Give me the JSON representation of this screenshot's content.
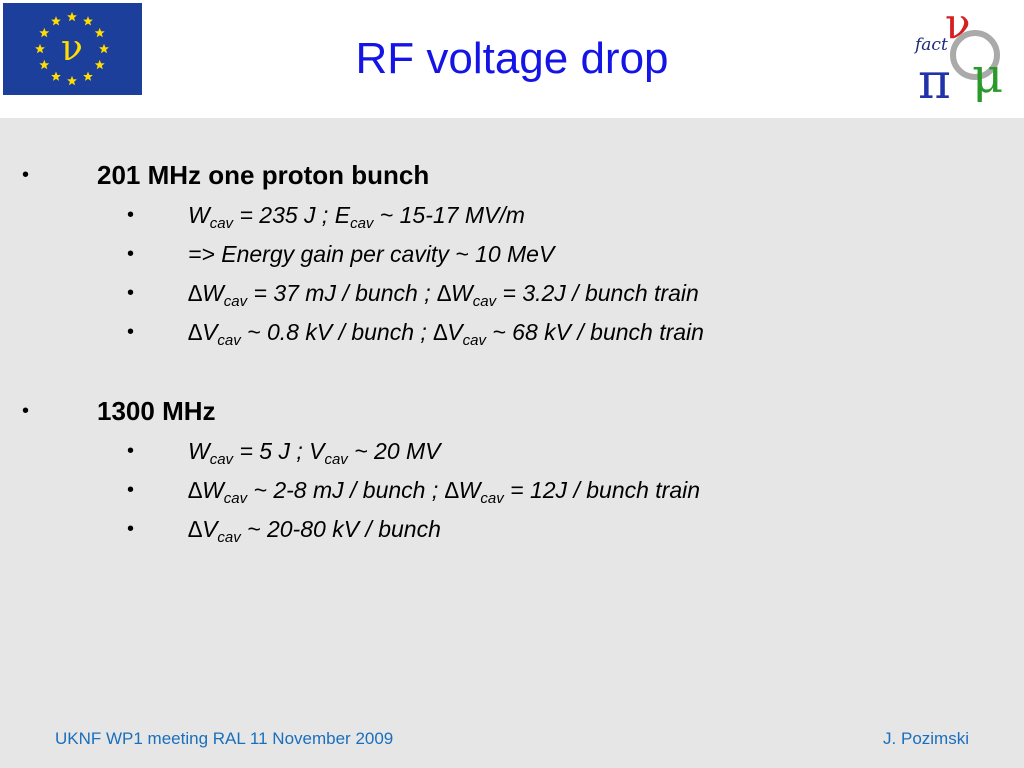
{
  "header": {
    "title": "RF voltage drop",
    "left_logo": "ν",
    "right_logo": {
      "word": "fact",
      "nu": "ν",
      "pi": "π",
      "mu": "μ"
    }
  },
  "bullets": [
    {
      "text": "201 MHz one proton bunch",
      "items": [
        [
          "W",
          "cav",
          " = 235 J ; E",
          "cav",
          " ~ 15-17 MV/m"
        ],
        [
          "=> Energy gain per cavity ~ 10 MeV"
        ],
        [
          "∆W",
          "cav",
          " = 37 mJ / bunch ; ∆W",
          "cav",
          " = 3.2J / bunch train"
        ],
        [
          "∆V",
          "cav",
          " ~ 0.8 kV / bunch ; ∆V",
          "cav",
          " ~ 68 kV / bunch train"
        ]
      ]
    },
    {
      "text": "1300 MHz",
      "items": [
        [
          "W",
          "cav",
          " = 5 J ; V",
          "cav",
          " ~ 20 MV"
        ],
        [
          "∆W",
          "cav",
          " ~ 2-8 mJ / bunch ; ∆W",
          "cav",
          " = 12J / bunch train"
        ],
        [
          "∆V",
          "cav",
          " ~ 20-80 kV / bunch"
        ]
      ]
    }
  ],
  "footer": {
    "left": "UKNF WP1 meeting RAL 11 November 2009",
    "right": "J. Pozimski"
  }
}
